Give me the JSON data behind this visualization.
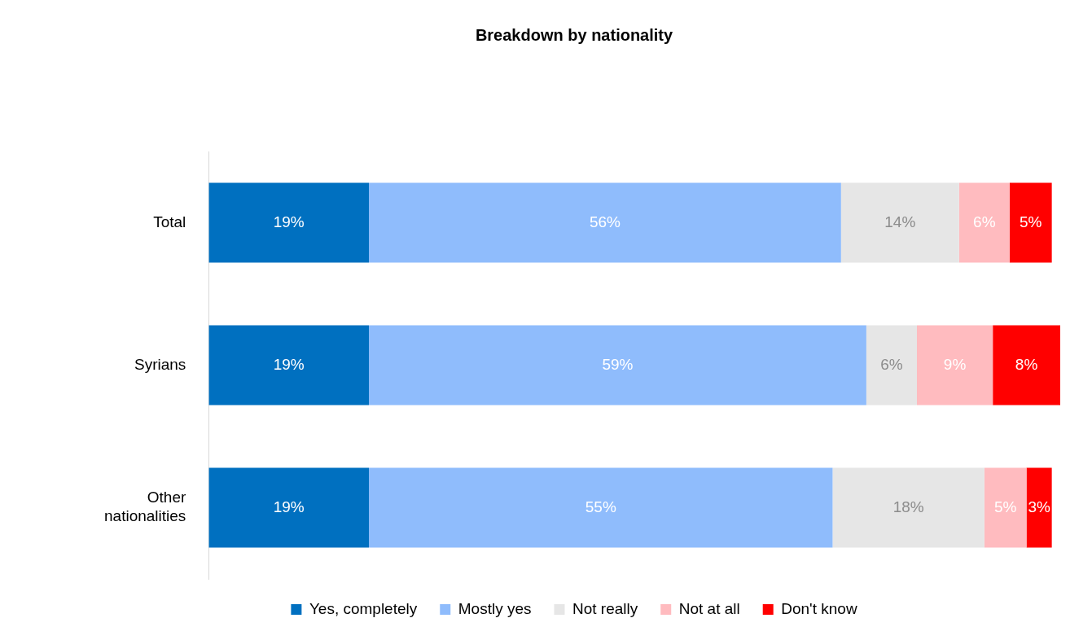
{
  "chart_data": {
    "type": "bar",
    "orientation": "horizontal",
    "stacked": true,
    "title": "Breakdown by nationality",
    "categories": [
      "Total",
      "Syrians",
      "Other nationalities"
    ],
    "series": [
      {
        "name": "Yes, completely",
        "color": "#0070c0",
        "values": [
          19,
          19,
          19
        ],
        "value_labels": [
          "19%",
          "19%",
          "19%"
        ]
      },
      {
        "name": "Mostly yes",
        "color": "#8fbcfc",
        "values": [
          56,
          59,
          55
        ],
        "value_labels": [
          "56%",
          "59%",
          "55%"
        ]
      },
      {
        "name": "Not really",
        "color": "#e6e6e6",
        "values": [
          14,
          6,
          18
        ],
        "value_labels": [
          "14%",
          "6%",
          "18%"
        ]
      },
      {
        "name": "Not at all",
        "color": "#ffbbbf",
        "values": [
          6,
          9,
          5
        ],
        "value_labels": [
          "6%",
          "9%",
          "5%"
        ]
      },
      {
        "name": "Don't know",
        "color": "#ff0000",
        "values": [
          5,
          8,
          3
        ],
        "value_labels": [
          "5%",
          "8%",
          "3%"
        ]
      }
    ],
    "legend": "bottom"
  }
}
